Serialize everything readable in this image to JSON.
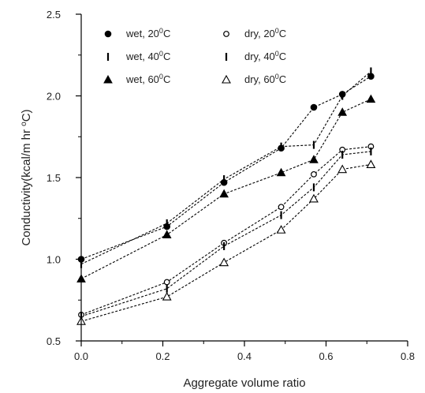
{
  "chart_data": {
    "type": "line",
    "xlabel": "Aggregate volume ratio",
    "ylabel_prefix": "Conductivity(kcal/m hr ",
    "ylabel_sup": "o",
    "ylabel_suffix": "C)",
    "xlim": [
      0.0,
      0.8
    ],
    "ylim": [
      0.5,
      2.5
    ],
    "xticks": [
      0.0,
      0.2,
      0.4,
      0.6,
      0.8
    ],
    "yticks": [
      0.5,
      1.0,
      1.5,
      2.0,
      2.5
    ],
    "xtick_labels": [
      "0.0",
      "0.2",
      "0.4",
      "0.6",
      "0.8"
    ],
    "ytick_labels": [
      "0.5",
      "1.0",
      "1.5",
      "2.0",
      "2.5"
    ],
    "grid": false,
    "legend_position": "top-left",
    "series": [
      {
        "name_main": "wet, 20",
        "name_sup": "0",
        "name_tail": "C",
        "marker": "circle-filled",
        "x": [
          0.0,
          0.21,
          0.35,
          0.49,
          0.57,
          0.64,
          0.71
        ],
        "y": [
          1.0,
          1.2,
          1.47,
          1.68,
          1.93,
          2.01,
          2.12
        ]
      },
      {
        "name_main": "wet, 40",
        "name_sup": "0",
        "name_tail": "C",
        "marker": "bar",
        "x": [
          0.0,
          0.21,
          0.35,
          0.49,
          0.57,
          0.64,
          0.71
        ],
        "y": [
          0.97,
          1.22,
          1.49,
          1.69,
          1.7,
          2.0,
          2.15
        ]
      },
      {
        "name_main": "wet, 60",
        "name_sup": "0",
        "name_tail": "C",
        "marker": "triangle-filled",
        "x": [
          0.0,
          0.21,
          0.35,
          0.49,
          0.57,
          0.64,
          0.71
        ],
        "y": [
          0.88,
          1.15,
          1.4,
          1.53,
          1.61,
          1.9,
          1.98
        ]
      },
      {
        "name_main": "dry, 20",
        "name_sup": "0",
        "name_tail": "C",
        "marker": "circle-open",
        "x": [
          0.0,
          0.21,
          0.35,
          0.49,
          0.57,
          0.64,
          0.71
        ],
        "y": [
          0.66,
          0.86,
          1.1,
          1.32,
          1.52,
          1.67,
          1.69
        ]
      },
      {
        "name_main": "dry, 40",
        "name_sup": "0",
        "name_tail": "C",
        "marker": "bar",
        "x": [
          0.0,
          0.21,
          0.35,
          0.49,
          0.57,
          0.64,
          0.71
        ],
        "y": [
          0.65,
          0.82,
          1.08,
          1.27,
          1.44,
          1.64,
          1.66
        ]
      },
      {
        "name_main": "dry, 60",
        "name_sup": "0",
        "name_tail": "C",
        "marker": "triangle-open",
        "x": [
          0.0,
          0.21,
          0.35,
          0.49,
          0.57,
          0.64,
          0.71
        ],
        "y": [
          0.62,
          0.77,
          0.98,
          1.18,
          1.37,
          1.55,
          1.58
        ]
      }
    ]
  }
}
